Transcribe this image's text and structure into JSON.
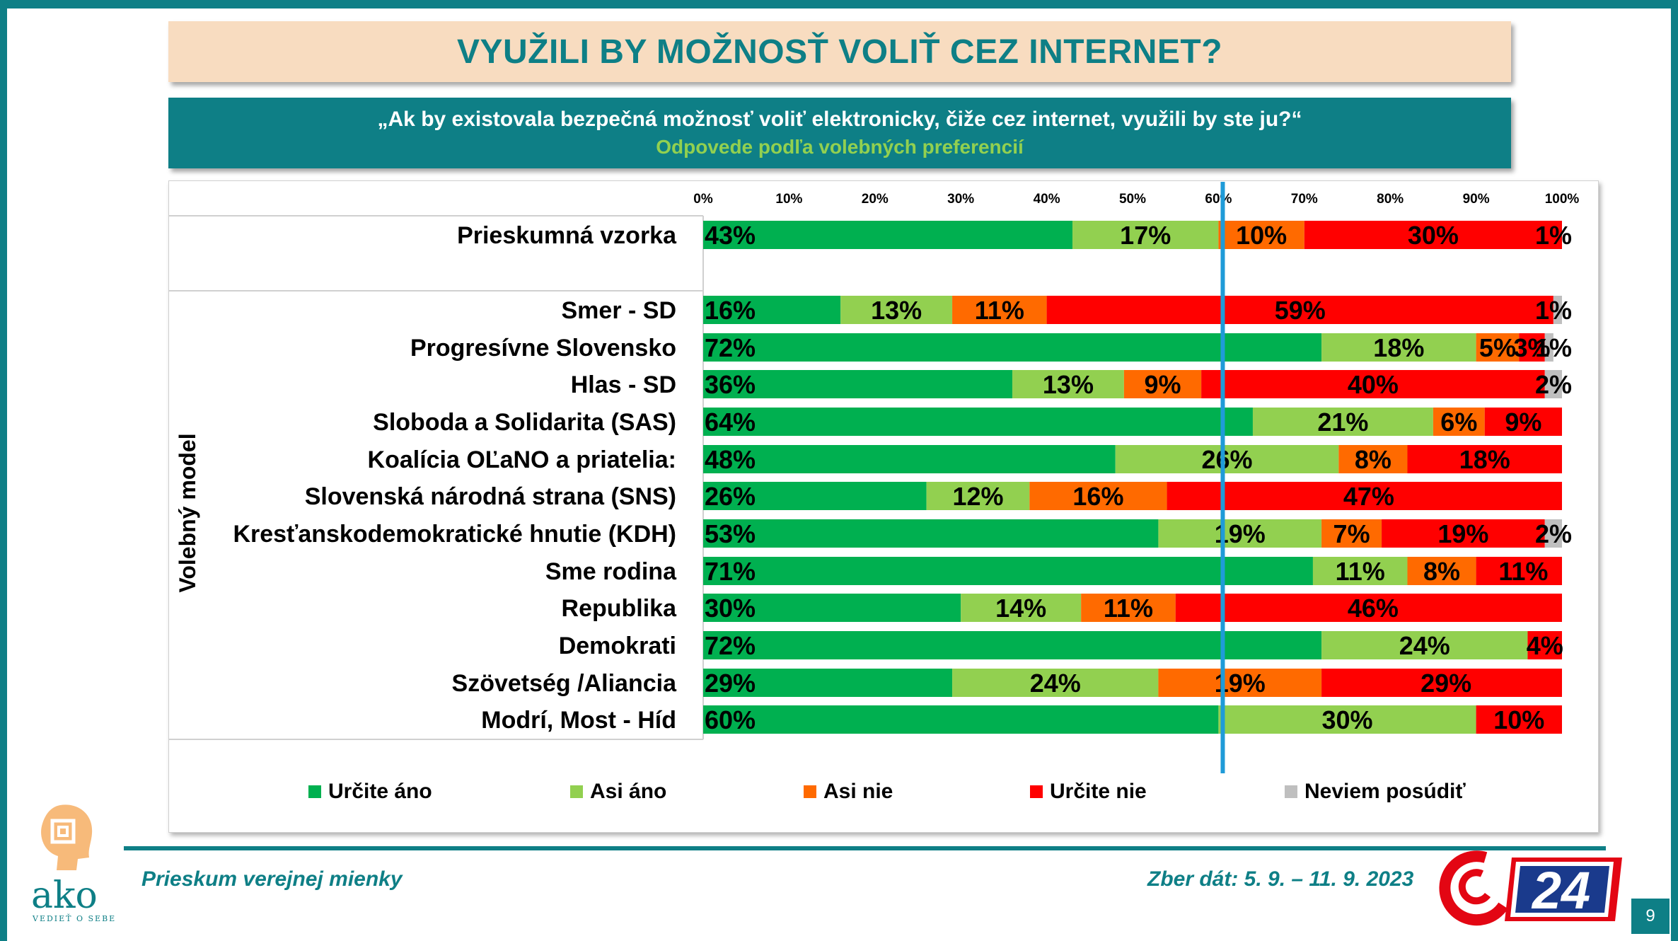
{
  "title": "VYUŽILI BY MOŽNOSŤ VOLIŤ CEZ INTERNET?",
  "subtitle": {
    "question": "„Ak by existovala bezpečná možnosť voliť elektronicky, čiže cez internet, využili by ste ju?“",
    "note": "Odpovede podľa volebných preferencií"
  },
  "footer": {
    "left": "Prieskum verejnej mienky",
    "right": "Zber dát: 5. 9. – 11. 9. 2023",
    "page": "9"
  },
  "logos": {
    "ako_text": "ako",
    "ako_tagline": "VEDIEŤ O SEBE",
    "tv_text": "24"
  },
  "colors": {
    "urcite_ano": "#00b050",
    "asi_ano": "#92d050",
    "asi_nie": "#ff6a00",
    "urcite_nie": "#ff0000",
    "neviem": "#bfbfbf",
    "accent": "#0e7f86",
    "reference_line": "#1f9bd8"
  },
  "chart_data": {
    "type": "bar",
    "orientation": "horizontal-stacked-100",
    "xlim": [
      0,
      100
    ],
    "x_ticks": [
      "0%",
      "10%",
      "20%",
      "30%",
      "40%",
      "50%",
      "60%",
      "70%",
      "80%",
      "90%",
      "100%"
    ],
    "group_label": "Volebný model",
    "reference_line_x": 60.5,
    "legend_position": "bottom",
    "series": [
      {
        "name": "Určite áno",
        "color": "#00b050"
      },
      {
        "name": "Asi áno",
        "color": "#92d050"
      },
      {
        "name": "Asi nie",
        "color": "#ff6a00"
      },
      {
        "name": "Určite nie",
        "color": "#ff0000"
      },
      {
        "name": "Neviem posúdiť",
        "color": "#bfbfbf"
      }
    ],
    "rows": [
      {
        "category": "Prieskumná vzorka",
        "values": [
          43,
          17,
          10,
          30,
          1
        ],
        "labels": [
          "43%",
          "17%",
          "10%",
          "30%",
          "1%"
        ]
      },
      {
        "category": "Smer - SD",
        "values": [
          16,
          13,
          11,
          59,
          1
        ],
        "labels": [
          "16%",
          "13%",
          "11%",
          "59%",
          "1%"
        ]
      },
      {
        "category": "Progresívne Slovensko",
        "values": [
          72,
          18,
          5,
          3,
          1
        ],
        "labels": [
          "72%",
          "18%",
          "5%",
          "3%",
          "1%"
        ]
      },
      {
        "category": "Hlas - SD",
        "values": [
          36,
          13,
          9,
          40,
          2
        ],
        "labels": [
          "36%",
          "13%",
          "9%",
          "40%",
          "2%"
        ]
      },
      {
        "category": "Sloboda a Solidarita (SAS)",
        "values": [
          64,
          21,
          6,
          9,
          0
        ],
        "labels": [
          "64%",
          "21%",
          "6%",
          "9%",
          ""
        ]
      },
      {
        "category": "Koalícia OĽaNO a priatelia:",
        "values": [
          48,
          26,
          8,
          18,
          0
        ],
        "labels": [
          "48%",
          "26%",
          "8%",
          "18%",
          ""
        ]
      },
      {
        "category": "Slovenská národná strana (SNS)",
        "values": [
          26,
          12,
          16,
          47,
          0
        ],
        "labels": [
          "26%",
          "12%",
          "16%",
          "47%",
          ""
        ]
      },
      {
        "category": "Kresťanskodemokratické hnutie (KDH)",
        "values": [
          53,
          19,
          7,
          19,
          2
        ],
        "labels": [
          "53%",
          "19%",
          "7%",
          "19%",
          "2%"
        ]
      },
      {
        "category": "Sme rodina",
        "values": [
          71,
          11,
          8,
          11,
          0
        ],
        "labels": [
          "71%",
          "11%",
          "8%",
          "11%",
          ""
        ]
      },
      {
        "category": "Republika",
        "values": [
          30,
          14,
          11,
          46,
          0
        ],
        "labels": [
          "30%",
          "14%",
          "11%",
          "46%",
          ""
        ]
      },
      {
        "category": "Demokrati",
        "values": [
          72,
          24,
          0,
          4,
          0
        ],
        "labels": [
          "72%",
          "24%",
          "",
          "4%",
          ""
        ]
      },
      {
        "category": "Szövetség  /Aliancia",
        "values": [
          29,
          24,
          19,
          29,
          0
        ],
        "labels": [
          "29%",
          "24%",
          "19%",
          "29%",
          ""
        ]
      },
      {
        "category": "Modrí, Most - Híd",
        "values": [
          60,
          30,
          0,
          10,
          0
        ],
        "labels": [
          "60%",
          "30%",
          "",
          "10%",
          ""
        ]
      }
    ]
  }
}
